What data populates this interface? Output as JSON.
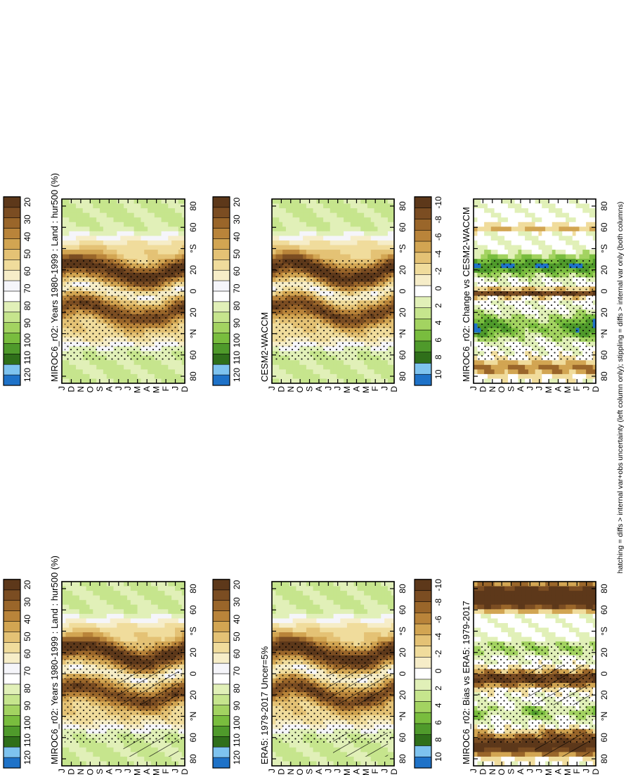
{
  "footnote": "hatching = diffs > internal var+obs uncertainty (left column only); stippling = diffs > internal var only (both columns)",
  "colors": {
    "abs_scale": [
      "#1e72c8",
      "#7ec3ef",
      "#2f6f1a",
      "#4f9a2b",
      "#79bd3e",
      "#a3d361",
      "#c6e58d",
      "#e1f0b8",
      "#ffffff",
      "#f5f5fa",
      "#f6edc8",
      "#f0dc9c",
      "#e4c275",
      "#d2a552",
      "#b9843a",
      "#9a662a",
      "#7b4d22",
      "#5d381a"
    ],
    "diff_scale": [
      "#1e72c8",
      "#7ec3ef",
      "#2f6f1a",
      "#4f9a2b",
      "#79bd3e",
      "#a3d361",
      "#c6e58d",
      "#e1f0b8",
      "#ffffff",
      "#f6edc8",
      "#f0dc9c",
      "#e4c275",
      "#d2a552",
      "#b9843a",
      "#9a662a",
      "#7b4d22",
      "#5d381a"
    ]
  },
  "chart_data": [
    {
      "type": "heatmap",
      "panel": "top-left",
      "title": "MIROC6_r02: Years 1980-1999 : Land : hur500 (%)",
      "x_ticks": [
        "D",
        "J",
        "F",
        "M",
        "A",
        "M",
        "J",
        "J",
        "A",
        "S",
        "O",
        "N",
        "D",
        "J"
      ],
      "y_ticks": [
        "80",
        "60",
        "°N",
        "20",
        "0",
        "20",
        "°S",
        "60",
        "80"
      ],
      "colorbar_labels": [
        "120",
        "110",
        "100",
        "90",
        "80",
        "70",
        "60",
        "50",
        "40",
        "30",
        "20"
      ],
      "hatching": true,
      "stippling": true
    },
    {
      "type": "heatmap",
      "panel": "top-right",
      "title": "MIROC6_r02: Years 1980-1999 : Land : hur500 (%)",
      "x_ticks": [
        "D",
        "J",
        "F",
        "M",
        "A",
        "M",
        "J",
        "J",
        "A",
        "S",
        "O",
        "N",
        "D",
        "J"
      ],
      "y_ticks": [
        "80",
        "60",
        "°N",
        "20",
        "0",
        "20",
        "°S",
        "60",
        "80"
      ],
      "colorbar_labels": [
        "120",
        "110",
        "100",
        "90",
        "80",
        "70",
        "60",
        "50",
        "40",
        "30",
        "20"
      ],
      "hatching": false,
      "stippling": true
    },
    {
      "type": "heatmap",
      "panel": "middle-left",
      "title": "ERA5: 1979-2017 Uncer=5%",
      "x_ticks": [
        "D",
        "J",
        "F",
        "M",
        "A",
        "M",
        "J",
        "J",
        "A",
        "S",
        "O",
        "N",
        "D",
        "J"
      ],
      "y_ticks": [
        "80",
        "60",
        "°N",
        "20",
        "0",
        "20",
        "°S",
        "60",
        "80"
      ],
      "colorbar_labels": [
        "120",
        "110",
        "100",
        "90",
        "80",
        "70",
        "60",
        "50",
        "40",
        "30",
        "20"
      ],
      "hatching": true,
      "stippling": true
    },
    {
      "type": "heatmap",
      "panel": "middle-right",
      "title": "CESM2-WACCM",
      "x_ticks": [
        "D",
        "J",
        "F",
        "M",
        "A",
        "M",
        "J",
        "J",
        "A",
        "S",
        "O",
        "N",
        "D",
        "J"
      ],
      "y_ticks": [
        "80",
        "60",
        "°N",
        "20",
        "0",
        "20",
        "°S",
        "60",
        "80"
      ],
      "colorbar_labels": [
        "120",
        "110",
        "100",
        "90",
        "80",
        "70",
        "60",
        "50",
        "40",
        "30",
        "20"
      ],
      "hatching": false,
      "stippling": true
    },
    {
      "type": "heatmap",
      "panel": "bottom-left",
      "title": "MIROC6_r02: Bias vs ERA5: 1979-2017",
      "x_ticks": [
        "D",
        "J",
        "F",
        "M",
        "A",
        "M",
        "J",
        "J",
        "A",
        "S",
        "O",
        "N",
        "D",
        "J"
      ],
      "y_ticks": [
        "80",
        "60",
        "°N",
        "20",
        "0",
        "20",
        "°S",
        "60",
        "80"
      ],
      "colorbar_labels": [
        "10",
        "8",
        "6",
        "4",
        "2",
        "0",
        "-2",
        "-4",
        "-6",
        "-8",
        "-10"
      ],
      "hatching": true,
      "stippling": true
    },
    {
      "type": "heatmap",
      "panel": "bottom-right",
      "title": "MIROC6_r02: Change vs CESM2-WACCM",
      "x_ticks": [
        "D",
        "J",
        "F",
        "M",
        "A",
        "M",
        "J",
        "J",
        "A",
        "S",
        "O",
        "N",
        "D",
        "J"
      ],
      "y_ticks": [
        "80",
        "60",
        "°N",
        "20",
        "0",
        "20",
        "°S",
        "60",
        "80"
      ],
      "colorbar_labels": [
        "10",
        "8",
        "6",
        "4",
        "2",
        "0",
        "-2",
        "-4",
        "-6",
        "-8",
        "-10"
      ],
      "hatching": false,
      "stippling": true
    }
  ]
}
